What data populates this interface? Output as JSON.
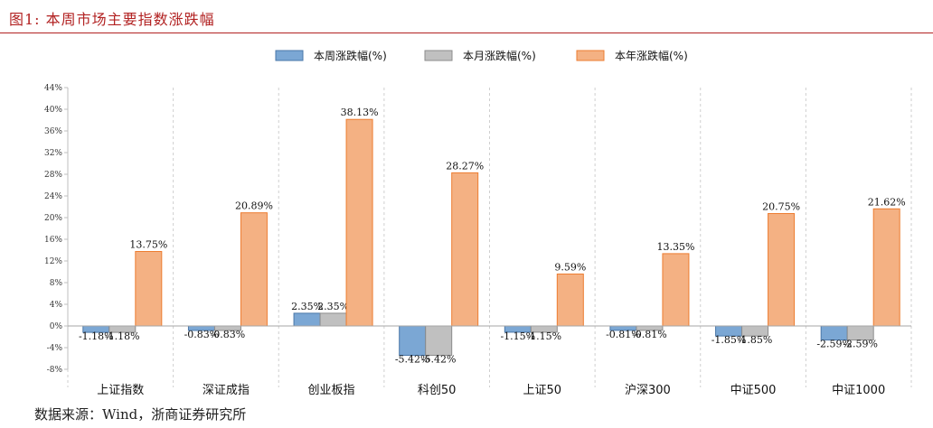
{
  "header": {
    "title": "图1:  本周市场主要指数涨跌幅"
  },
  "footer": {
    "source": "数据来源：Wind，浙商证券研究所"
  },
  "chart_data": {
    "type": "bar",
    "categories": [
      "上证指数",
      "深证成指",
      "创业板指",
      "科创50",
      "上证50",
      "沪深300",
      "中证500",
      "中证1000"
    ],
    "series": [
      {
        "name": "本周涨跌幅(%)",
        "color": "#7ba7d4",
        "stroke": "#4a77a8",
        "values": [
          -1.18,
          -0.83,
          2.35,
          -5.42,
          -1.15,
          -0.81,
          -1.85,
          -2.59
        ],
        "labels": [
          "-1.18%",
          "-0.83%",
          "2.35%",
          "-5.42%",
          "-1.15%",
          "-0.81%",
          "-1.85%",
          "-2.59%"
        ]
      },
      {
        "name": "本月涨跌幅(%)",
        "color": "#c0c0c0",
        "stroke": "#8c8c8c",
        "values": [
          -1.18,
          -0.83,
          2.35,
          -5.42,
          -1.15,
          -0.81,
          -1.85,
          -2.59
        ],
        "labels": [
          "-1.18%",
          "-0.83%",
          "2.35%",
          "-5.42%",
          "-1.15%",
          "-0.81%",
          "-1.85%",
          "-2.59%"
        ]
      },
      {
        "name": "本年涨跌幅(%)",
        "color": "#f4b183",
        "stroke": "#ed7d31",
        "values": [
          13.75,
          20.89,
          38.13,
          28.27,
          9.59,
          13.35,
          20.75,
          21.62
        ],
        "labels": [
          "13.75%",
          "20.89%",
          "38.13%",
          "28.27%",
          "9.59%",
          "13.35%",
          "20.75%",
          "21.62%"
        ]
      }
    ],
    "ylim": [
      -8,
      44
    ],
    "yticks": [
      -8,
      -4,
      0,
      4,
      8,
      12,
      16,
      20,
      24,
      28,
      32,
      36,
      40,
      44
    ],
    "ytick_labels": [
      "-8%",
      "-4%",
      "0%",
      "4%",
      "8%",
      "12%",
      "16%",
      "20%",
      "24%",
      "28%",
      "32%",
      "36%",
      "40%",
      "44%"
    ],
    "legend_position": "top",
    "grid": false
  }
}
